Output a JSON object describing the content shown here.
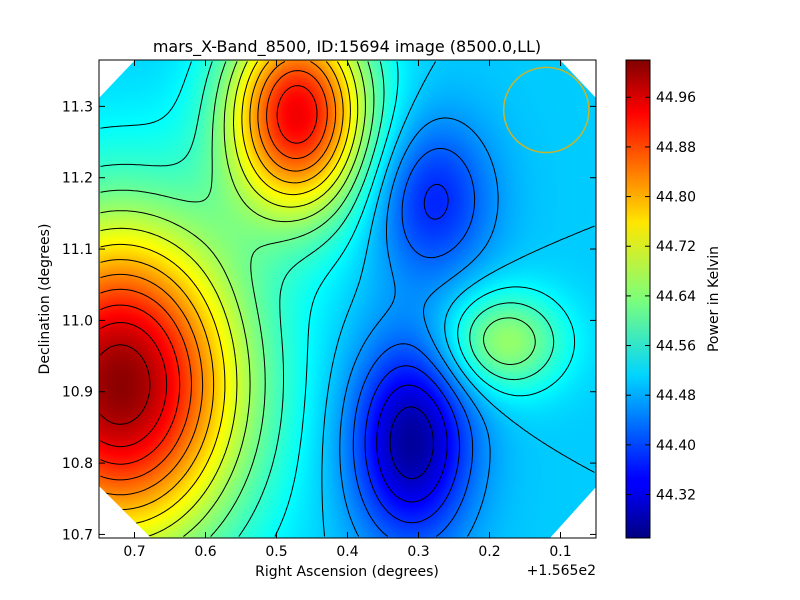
{
  "chart_data": {
    "type": "heatmap",
    "title": "mars_X-Band_8500, ID:15694 image (8500.0,LL)",
    "xlabel": "Right Ascension (degrees)",
    "ylabel": "Declination (degrees)",
    "x_offset_label": "+1.565e2",
    "xlim": [
      0.75,
      0.05
    ],
    "ylim": [
      10.695,
      11.365
    ],
    "x_ticks": [
      0.7,
      0.6,
      0.5,
      0.4,
      0.3,
      0.2,
      0.1
    ],
    "x_tick_labels": [
      "0.7",
      "0.6",
      "0.5",
      "0.4",
      "0.3",
      "0.2",
      "0.1"
    ],
    "y_ticks": [
      10.7,
      10.8,
      10.9,
      11.0,
      11.1,
      11.2,
      11.3
    ],
    "y_tick_labels": [
      "10.7",
      "10.8",
      "10.9",
      "11.0",
      "11.1",
      "11.2",
      "11.3"
    ],
    "colorbar": {
      "label": "Power in Kelvin",
      "range": [
        44.25,
        45.02
      ],
      "ticks": [
        44.32,
        44.4,
        44.48,
        44.56,
        44.64,
        44.72,
        44.8,
        44.88,
        44.96
      ],
      "tick_labels": [
        "44.32",
        "44.40",
        "44.48",
        "44.56",
        "44.64",
        "44.72",
        "44.80",
        "44.88",
        "44.96"
      ],
      "colormap": "jet"
    },
    "features": [
      {
        "kind": "max",
        "ra": 0.72,
        "dec": 10.91,
        "value": 45.01
      },
      {
        "kind": "max",
        "ra": 0.47,
        "dec": 11.29,
        "value": 44.93
      },
      {
        "kind": "min",
        "ra": 0.28,
        "dec": 11.17,
        "value": 44.37
      },
      {
        "kind": "min",
        "ra": 0.31,
        "dec": 10.83,
        "value": 44.27
      },
      {
        "kind": "local-max",
        "ra": 0.18,
        "dec": 10.97,
        "value": 44.66
      },
      {
        "kind": "saddle",
        "ra": 0.38,
        "dec": 11.07,
        "value": 44.53
      }
    ],
    "beam_circle": {
      "ra": 0.12,
      "dec": 11.295,
      "radius_deg": 0.06,
      "color": "#c8b42a"
    },
    "grid": false,
    "legend": "none"
  }
}
